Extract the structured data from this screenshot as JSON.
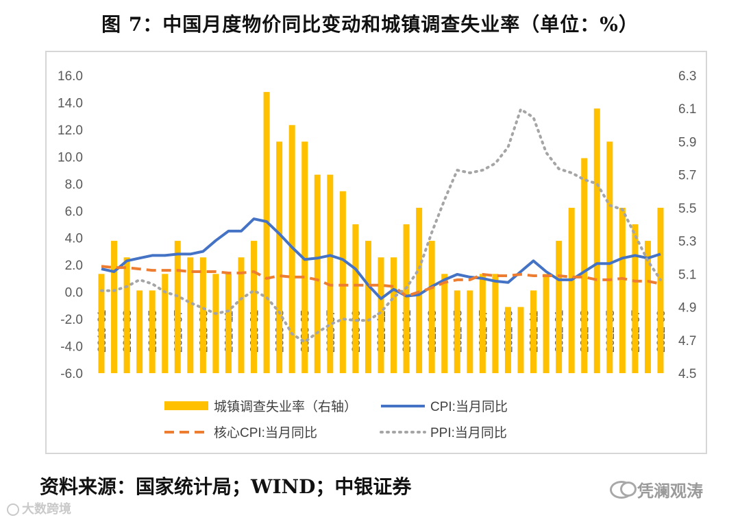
{
  "title": "图 7：中国月度物价同比变动和城镇调查失业率（单位：%）",
  "source": "资料来源：国家统计局；WIND；中银证券",
  "watermark_left": "大数跨境",
  "watermark_right": "凭澜观涛",
  "chart_data": {
    "type": "bar",
    "months": [
      "2019-01",
      "2019-02",
      "2019-03",
      "2019-04",
      "2019-05",
      "2019-06",
      "2019-07",
      "2019-08",
      "2019-09",
      "2019-10",
      "2019-11",
      "2019-12",
      "2020-01",
      "2020-02",
      "2020-03",
      "2020-04",
      "2020-05",
      "2020-06",
      "2020-07",
      "2020-08",
      "2020-09",
      "2020-10",
      "2020-11",
      "2020-12",
      "2021-01",
      "2021-02",
      "2021-03",
      "2021-04",
      "2021-05",
      "2021-06",
      "2021-07",
      "2021-08",
      "2021-09",
      "2021-10",
      "2021-11",
      "2021-12",
      "2022-01",
      "2022-02",
      "2022-03",
      "2022-04",
      "2022-05",
      "2022-06",
      "2022-07",
      "2022-08",
      "2022-09"
    ],
    "x_tick_labels": [
      "2019-01",
      "2019-03",
      "2019-05",
      "2019-07",
      "2019-09",
      "2019-11",
      "2020-01",
      "2020-03",
      "2020-05",
      "2020-07",
      "2020-09",
      "2020-11",
      "2021-01",
      "2021-03",
      "2021-05",
      "2021-07",
      "2021-09",
      "2021-11",
      "2022-01",
      "2022-03",
      "2022-05",
      "2022-07",
      "2022-09"
    ],
    "left_axis": {
      "min": -6,
      "max": 16,
      "step": 2,
      "tick_labels": [
        "16.0",
        "14.0",
        "12.0",
        "10.0",
        "8.0",
        "6.0",
        "4.0",
        "2.0",
        "0.0",
        "-2.0",
        "-4.0",
        "-6.0"
      ]
    },
    "right_axis": {
      "min": 4.5,
      "max": 6.3,
      "step": 0.2,
      "tick_labels": [
        "6.3",
        "6.1",
        "5.9",
        "5.7",
        "5.5",
        "5.3",
        "5.1",
        "4.9",
        "4.7",
        "4.5"
      ]
    },
    "grid": false,
    "legend_position": "bottom",
    "series": [
      {
        "name": "城镇调查失业率（右轴）",
        "kind": "bar",
        "axis": "right",
        "color": "#FFC000",
        "values": [
          5.1,
          5.3,
          5.2,
          5.0,
          5.0,
          5.1,
          5.3,
          5.2,
          5.2,
          5.1,
          5.1,
          5.2,
          5.3,
          6.2,
          5.9,
          6.0,
          5.9,
          5.7,
          5.7,
          5.6,
          5.4,
          5.3,
          5.2,
          5.2,
          5.4,
          5.5,
          5.3,
          5.1,
          5.0,
          5.0,
          5.1,
          5.1,
          4.9,
          4.9,
          5.0,
          5.1,
          5.3,
          5.5,
          5.8,
          6.1,
          5.9,
          5.5,
          5.4,
          5.3,
          5.5
        ]
      },
      {
        "name": "CPI:当月同比",
        "kind": "line",
        "axis": "left",
        "color": "#4472C4",
        "style": "solid",
        "values": [
          1.7,
          1.5,
          2.3,
          2.5,
          2.7,
          2.7,
          2.8,
          2.8,
          3.0,
          3.8,
          4.5,
          4.5,
          5.4,
          5.2,
          4.3,
          3.3,
          2.4,
          2.5,
          2.7,
          2.4,
          1.7,
          0.5,
          -0.5,
          0.2,
          -0.3,
          -0.2,
          0.4,
          0.9,
          1.3,
          1.1,
          1.0,
          0.8,
          0.7,
          1.5,
          2.3,
          1.5,
          0.9,
          0.9,
          1.5,
          2.1,
          2.1,
          2.5,
          2.7,
          2.5,
          2.8
        ]
      },
      {
        "name": "核心CPI:当月同比",
        "kind": "line",
        "axis": "left",
        "color": "#ED7D31",
        "style": "dashed",
        "values": [
          1.9,
          1.8,
          1.8,
          1.7,
          1.6,
          1.6,
          1.6,
          1.5,
          1.5,
          1.5,
          1.4,
          1.4,
          1.5,
          1.0,
          1.2,
          1.1,
          1.1,
          0.9,
          0.5,
          0.5,
          0.5,
          0.5,
          0.5,
          0.4,
          -0.3,
          0.0,
          0.3,
          0.7,
          0.9,
          0.9,
          1.3,
          1.2,
          1.2,
          1.3,
          1.2,
          1.2,
          1.2,
          1.1,
          1.1,
          0.9,
          0.9,
          1.0,
          0.8,
          0.8,
          0.6
        ]
      },
      {
        "name": "PPI:当月同比",
        "kind": "line",
        "axis": "left",
        "color": "#A5A5A5",
        "style": "dotted",
        "values": [
          0.1,
          0.1,
          0.4,
          0.9,
          0.6,
          0.0,
          -0.3,
          -0.8,
          -1.2,
          -1.6,
          -1.4,
          -0.5,
          0.1,
          -0.4,
          -1.5,
          -3.1,
          -3.7,
          -3.0,
          -2.4,
          -2.0,
          -2.1,
          -2.1,
          -1.5,
          -0.4,
          0.3,
          1.7,
          4.4,
          6.8,
          9.0,
          8.8,
          9.0,
          9.5,
          10.7,
          13.5,
          12.9,
          10.3,
          9.1,
          8.8,
          8.3,
          8.0,
          6.4,
          6.1,
          4.2,
          2.3,
          0.9
        ]
      }
    ]
  }
}
